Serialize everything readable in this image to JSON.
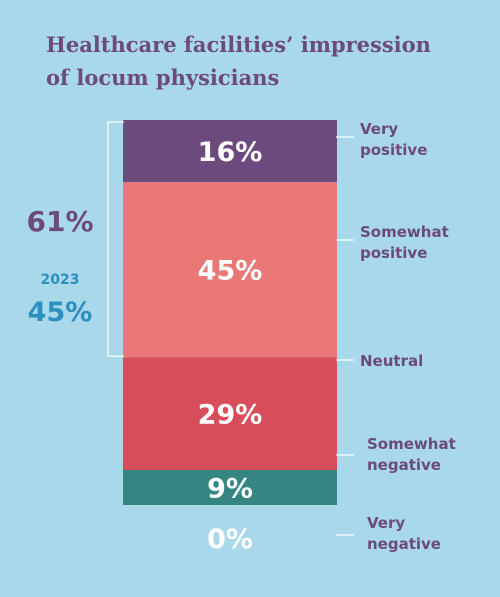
{
  "title_lines": [
    "Healthcare facilities’ impression",
    "of locum physicians"
  ],
  "summary": {
    "total_positive": "61%",
    "previous_year": "2023",
    "previous_total_positive": "45%"
  },
  "colors": {
    "background": "#a9d8ea",
    "title": "#6c4a7c",
    "previous_year": "#2b8fbf",
    "very_positive": "#6d4a7e",
    "somewhat_positive": "#e97775",
    "neutral": "#d84d5a",
    "somewhat_negative": "#358582",
    "very_negative": "#ffffff"
  },
  "chart_data": {
    "type": "bar",
    "orientation": "stacked-vertical",
    "categories": [
      "Very positive",
      "Somewhat positive",
      "Neutral",
      "Somewhat negative",
      "Very negative"
    ],
    "values": [
      16,
      45,
      29,
      9,
      0
    ],
    "labels": [
      "16%",
      "45%",
      "29%",
      "9%",
      "0%"
    ],
    "category_lines": [
      [
        "Very",
        "positive"
      ],
      [
        "Somewhat",
        "positive"
      ],
      [
        "Neutral"
      ],
      [
        "Somewhat",
        "negative"
      ],
      [
        "Very",
        "negative"
      ]
    ],
    "colors": [
      "#6d4a7e",
      "#e97775",
      "#d84d5a",
      "#358582",
      "#ffffff"
    ],
    "unit": "%",
    "bracket_covers": [
      "Very positive",
      "Somewhat positive"
    ]
  }
}
